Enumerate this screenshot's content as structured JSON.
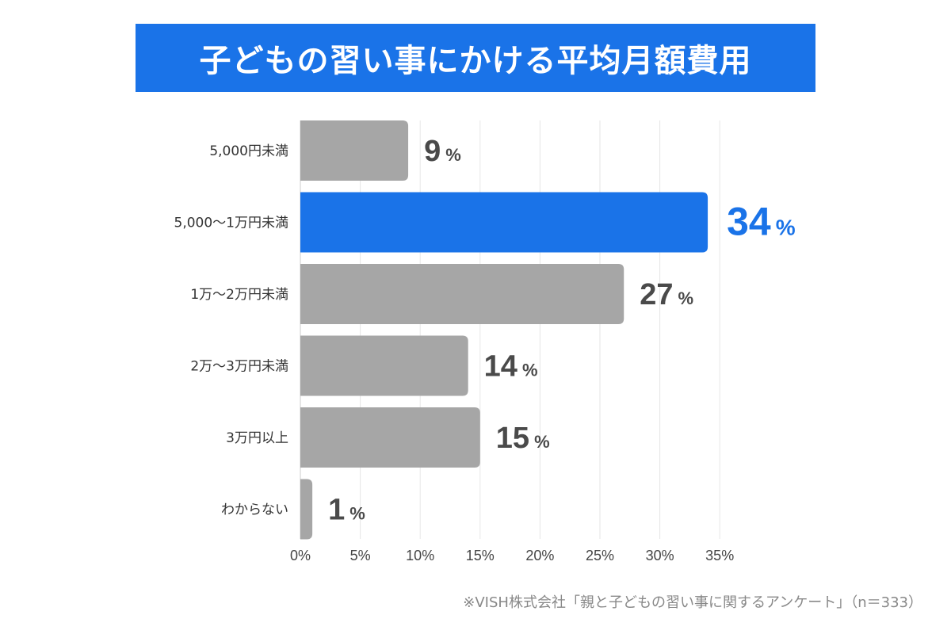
{
  "title": "子どもの習い事にかける平均月額費用",
  "source_note": "※VISH株式会社「親と子どもの習い事に関するアンケート」（n＝333）",
  "colors": {
    "highlight": "#1a73e8",
    "default_bar": "#a6a6a6",
    "grid": "#e6e6e6",
    "value_text": "#4a4a4a"
  },
  "chart_data": {
    "type": "bar",
    "orientation": "horizontal",
    "categories": [
      "5,000円未満",
      "5,000〜1万円未満",
      "1万〜2万円未満",
      "2万〜3万円未満",
      "3万円以上",
      "わからない"
    ],
    "values": [
      9,
      34,
      27,
      14,
      15,
      1
    ],
    "value_labels": [
      "9",
      "34",
      "27",
      "14",
      "15",
      "1"
    ],
    "value_unit": "%",
    "highlight_index": 1,
    "xlim": [
      0,
      35
    ],
    "xticks": [
      0,
      5,
      10,
      15,
      20,
      25,
      30,
      35
    ],
    "xtick_labels": [
      "0%",
      "5%",
      "10%",
      "15%",
      "20%",
      "25%",
      "30%",
      "35%"
    ],
    "grid": true,
    "xlabel": "",
    "ylabel": ""
  }
}
